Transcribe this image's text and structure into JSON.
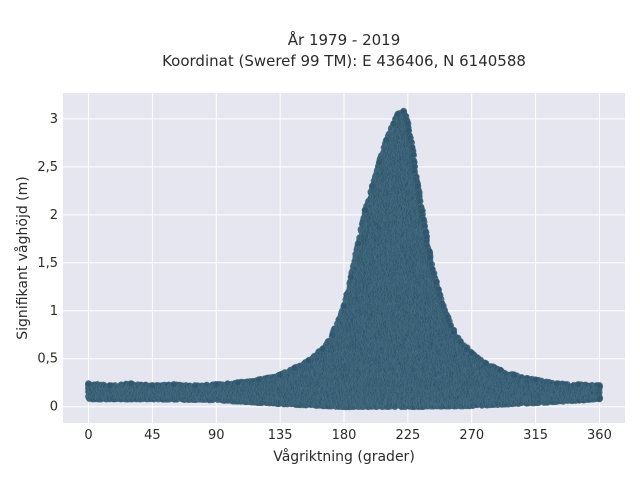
{
  "chart_data": {
    "type": "scatter",
    "title_line1": "År 1979 - 2019",
    "title_line2": "Koordinat (Sweref 99 TM): E 436406, N 6140588",
    "xlabel": "Vågriktning (grader)",
    "ylabel": "Signifikant våghöjd (m)",
    "xlim": [
      -18,
      378
    ],
    "ylim": [
      -0.17,
      3.27
    ],
    "grid": true,
    "x_ticks": [
      0,
      45,
      90,
      135,
      180,
      225,
      270,
      315,
      360
    ],
    "x_tick_labels": [
      "0",
      "45",
      "90",
      "135",
      "180",
      "225",
      "270",
      "315",
      "360"
    ],
    "y_ticks": [
      0,
      0.5,
      1,
      1.5,
      2,
      2.5,
      3
    ],
    "y_tick_labels": [
      "0",
      "0,5",
      "1",
      "1,5",
      "2",
      "2,5",
      "3"
    ],
    "point_color": "#2f566d",
    "background_color": "#e5e6ef",
    "envelope_upper": [
      [
        0,
        0.24
      ],
      [
        15,
        0.22
      ],
      [
        30,
        0.24
      ],
      [
        45,
        0.22
      ],
      [
        60,
        0.23
      ],
      [
        75,
        0.22
      ],
      [
        90,
        0.23
      ],
      [
        105,
        0.25
      ],
      [
        120,
        0.28
      ],
      [
        135,
        0.33
      ],
      [
        145,
        0.4
      ],
      [
        155,
        0.48
      ],
      [
        165,
        0.6
      ],
      [
        172,
        0.75
      ],
      [
        180,
        1.05
      ],
      [
        185,
        1.35
      ],
      [
        190,
        1.7
      ],
      [
        195,
        2.05
      ],
      [
        200,
        2.3
      ],
      [
        205,
        2.55
      ],
      [
        210,
        2.78
      ],
      [
        215,
        2.95
      ],
      [
        218,
        3.05
      ],
      [
        222,
        3.08
      ],
      [
        225,
        2.95
      ],
      [
        228,
        2.7
      ],
      [
        232,
        2.3
      ],
      [
        236,
        1.95
      ],
      [
        240,
        1.62
      ],
      [
        245,
        1.3
      ],
      [
        250,
        1.05
      ],
      [
        255,
        0.85
      ],
      [
        262,
        0.68
      ],
      [
        270,
        0.56
      ],
      [
        280,
        0.45
      ],
      [
        290,
        0.38
      ],
      [
        300,
        0.33
      ],
      [
        315,
        0.28
      ],
      [
        330,
        0.24
      ],
      [
        345,
        0.23
      ],
      [
        360,
        0.22
      ]
    ],
    "envelope_lower": [
      [
        0,
        0.08
      ],
      [
        45,
        0.08
      ],
      [
        90,
        0.07
      ],
      [
        135,
        0.03
      ],
      [
        180,
        0.0
      ],
      [
        225,
        0.0
      ],
      [
        270,
        0.01
      ],
      [
        315,
        0.04
      ],
      [
        360,
        0.08
      ]
    ]
  }
}
